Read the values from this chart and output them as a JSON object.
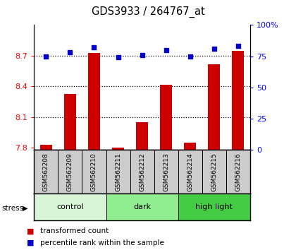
{
  "title": "GDS3933 / 264767_at",
  "samples": [
    "GSM562208",
    "GSM562209",
    "GSM562210",
    "GSM562211",
    "GSM562212",
    "GSM562213",
    "GSM562214",
    "GSM562215",
    "GSM562216"
  ],
  "transformed_counts": [
    7.83,
    8.33,
    8.73,
    7.8,
    8.05,
    8.42,
    7.85,
    8.62,
    8.75
  ],
  "percentile_ranks": [
    75,
    78,
    82,
    74,
    76,
    80,
    75,
    81,
    83
  ],
  "groups": [
    {
      "label": "control",
      "start": 0,
      "end": 3,
      "color": "#d8f5d8"
    },
    {
      "label": "dark",
      "start": 3,
      "end": 6,
      "color": "#90ee90"
    },
    {
      "label": "high light",
      "start": 6,
      "end": 9,
      "color": "#44cc44"
    }
  ],
  "ylim_left": [
    7.78,
    9.0
  ],
  "ylim_right": [
    0,
    100
  ],
  "yticks_left": [
    7.8,
    8.1,
    8.4,
    8.7
  ],
  "yticks_right": [
    0,
    25,
    50,
    75,
    100
  ],
  "right_tick_labels": [
    "0",
    "25",
    "50",
    "75",
    "100%"
  ],
  "bar_color": "#cc0000",
  "dot_color": "#0000cc",
  "bar_width": 0.5,
  "background_color": "#ffffff",
  "stress_label": "stress",
  "legend_items": [
    "transformed count",
    "percentile rank within the sample"
  ]
}
